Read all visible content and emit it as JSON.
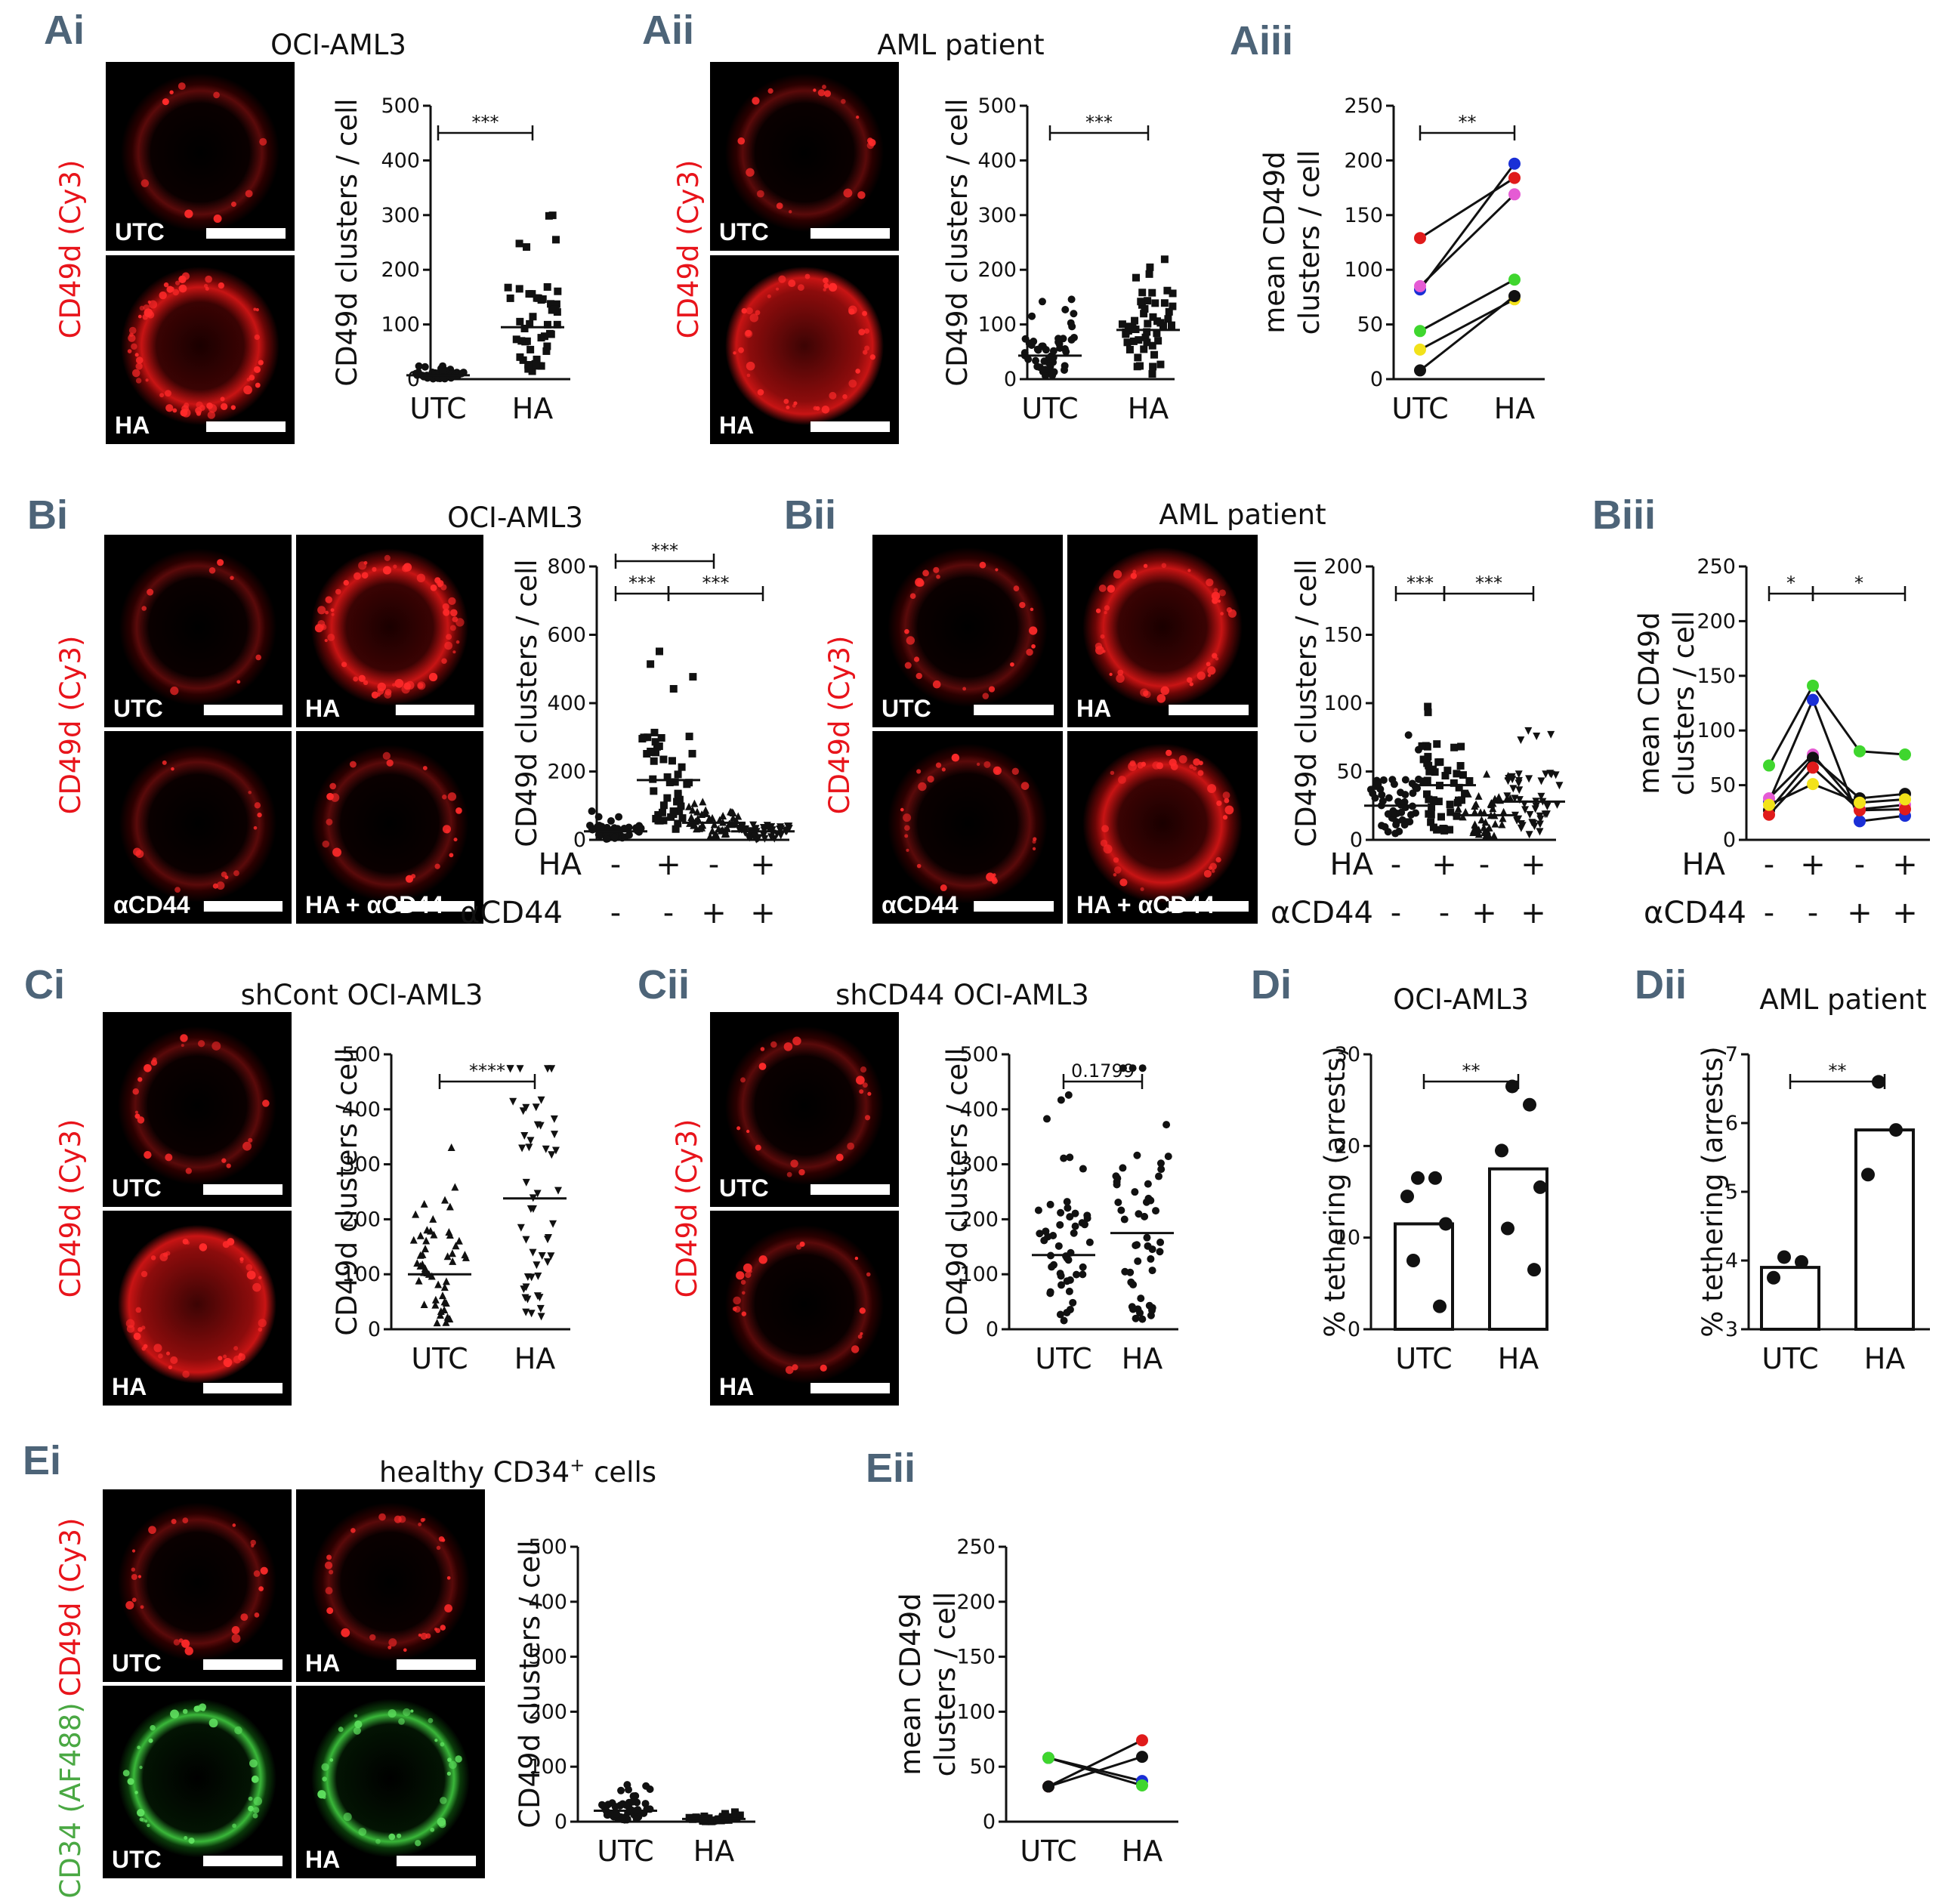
{
  "panel_labels": {
    "ai": "Ai",
    "aii": "Aii",
    "aiii": "Aiii",
    "bi": "Bi",
    "bii": "Bii",
    "biii": "Biii",
    "ci": "Ci",
    "cii": "Cii",
    "di": "Di",
    "dii": "Dii",
    "ei": "Ei",
    "eii": "Eii"
  },
  "titles": {
    "ai": "OCI-AML3",
    "aii": "AML patient",
    "bi": "OCI-AML3",
    "bii": "AML patient",
    "ci": "shCont OCI-AML3",
    "cii": "shCD44 OCI-AML3",
    "di": "OCI-AML3",
    "dii": "AML patient",
    "ei": "healthy CD34"
  },
  "title_superscripts": {
    "ei": "+"
  },
  "title_suffixes": {
    "ei": " cells"
  },
  "channel_labels": {
    "cd49d": "CD49d (Cy3)",
    "cd34": "CD34 (AF488)"
  },
  "channel_colors": {
    "cd49d": "#e8141b",
    "cd34": "#4aa843"
  },
  "micrograph_labels": {
    "utc": "UTC",
    "ha": "HA",
    "acd44": "αCD44",
    "ha_acd44": "HA + αCD44"
  },
  "condition_rows": {
    "ha_label": "HA",
    "acd44_label": "αCD44",
    "ha_values": [
      "-",
      "+",
      "-",
      "+"
    ],
    "acd44_values": [
      "-",
      "-",
      "+",
      "+"
    ]
  },
  "chart_data": [
    {
      "id": "Ai",
      "type": "scatter",
      "ylabel": "CD49d clusters / cell",
      "categories": [
        "UTC",
        "HA"
      ],
      "ylim": [
        0,
        500
      ],
      "yticks": [
        0,
        100,
        200,
        300,
        400,
        500
      ],
      "medians": [
        7,
        95
      ],
      "markers": [
        "circle",
        "square"
      ],
      "significance": [
        {
          "from": 0,
          "to": 1,
          "label": "***"
        }
      ]
    },
    {
      "id": "Aii",
      "type": "scatter",
      "ylabel": "CD49d clusters / cell",
      "categories": [
        "UTC",
        "HA"
      ],
      "ylim": [
        0,
        500
      ],
      "yticks": [
        0,
        100,
        200,
        300,
        400,
        500
      ],
      "medians": [
        43,
        90
      ],
      "markers": [
        "circle",
        "square"
      ],
      "significance": [
        {
          "from": 0,
          "to": 1,
          "label": "***"
        }
      ]
    },
    {
      "id": "Aiii",
      "type": "line",
      "ylabel": [
        "mean CD49d",
        "clusters / cell"
      ],
      "categories": [
        "UTC",
        "HA"
      ],
      "ylim": [
        0,
        250
      ],
      "yticks": [
        0,
        50,
        100,
        150,
        200,
        250
      ],
      "series": [
        {
          "color": "#1a2fd6",
          "values": [
            82,
            197
          ]
        },
        {
          "color": "#e01b1b",
          "values": [
            129,
            184
          ]
        },
        {
          "color": "#e55bd4",
          "values": [
            85,
            169
          ]
        },
        {
          "color": "#3fd62e",
          "values": [
            44,
            91
          ]
        },
        {
          "color": "#f2e21a",
          "values": [
            27,
            73
          ]
        },
        {
          "color": "#111111",
          "values": [
            8,
            76
          ]
        }
      ],
      "significance": [
        {
          "from": 0,
          "to": 1,
          "label": "**"
        }
      ]
    },
    {
      "id": "Bi",
      "type": "scatter",
      "ylabel": "CD49d clusters / cell",
      "categories": [
        "-/-",
        "+/-",
        "-/+",
        "+/+"
      ],
      "ylim": [
        0,
        800
      ],
      "yticks": [
        0,
        200,
        400,
        600,
        800
      ],
      "medians": [
        25,
        175,
        50,
        25
      ],
      "markers": [
        "circle",
        "square",
        "triangle",
        "triangle-down"
      ],
      "significance": [
        {
          "from": 0,
          "to": 1,
          "label": "***",
          "level": 0
        },
        {
          "from": 1,
          "to": 3,
          "label": "***",
          "level": 0
        },
        {
          "from": 0,
          "to": 2,
          "label": "***",
          "level": 1
        }
      ]
    },
    {
      "id": "Bii",
      "type": "scatter",
      "ylabel": "CD49d clusters / cell",
      "categories": [
        "-/-",
        "+/-",
        "-/+",
        "+/+"
      ],
      "ylim": [
        0,
        200
      ],
      "yticks": [
        0,
        50,
        100,
        150,
        200
      ],
      "medians": [
        25,
        40,
        18,
        28
      ],
      "markers": [
        "circle",
        "square",
        "triangle",
        "triangle-down"
      ],
      "significance": [
        {
          "from": 0,
          "to": 1,
          "label": "***",
          "level": 0
        },
        {
          "from": 1,
          "to": 3,
          "label": "***",
          "level": 0
        }
      ]
    },
    {
      "id": "Biii",
      "type": "line",
      "ylabel": [
        "mean CD49d",
        "clusters / cell"
      ],
      "categories": [
        "-/-",
        "+/-",
        "-/+",
        "+/+"
      ],
      "ylim": [
        0,
        250
      ],
      "yticks": [
        0,
        50,
        100,
        150,
        200,
        250
      ],
      "series": [
        {
          "color": "#3fd62e",
          "values": [
            68,
            141,
            81,
            78
          ]
        },
        {
          "color": "#1a2fd6",
          "values": [
            35,
            128,
            17,
            22
          ]
        },
        {
          "color": "#e55bd4",
          "values": [
            38,
            78,
            28,
            32
          ]
        },
        {
          "color": "#111111",
          "values": [
            27,
            75,
            38,
            42
          ]
        },
        {
          "color": "#e01b1b",
          "values": [
            23,
            66,
            27,
            28
          ]
        },
        {
          "color": "#f2e21a",
          "values": [
            32,
            51,
            34,
            37
          ]
        }
      ],
      "significance": [
        {
          "from": 0,
          "to": 1,
          "label": "*"
        },
        {
          "from": 1,
          "to": 3,
          "label": "*"
        }
      ]
    },
    {
      "id": "Ci",
      "type": "scatter",
      "ylabel": "CD49d clusters / cell",
      "categories": [
        "UTC",
        "HA"
      ],
      "ylim": [
        0,
        500
      ],
      "yticks": [
        0,
        100,
        200,
        300,
        400,
        500
      ],
      "medians": [
        100,
        238
      ],
      "markers": [
        "triangle",
        "triangle-down"
      ],
      "significance": [
        {
          "from": 0,
          "to": 1,
          "label": "****"
        }
      ]
    },
    {
      "id": "Cii",
      "type": "scatter",
      "ylabel": "CD49d clusters / cell",
      "categories": [
        "UTC",
        "HA"
      ],
      "ylim": [
        0,
        500
      ],
      "yticks": [
        0,
        100,
        200,
        300,
        400,
        500
      ],
      "medians": [
        135,
        175
      ],
      "markers": [
        "circle",
        "circle"
      ],
      "significance": [
        {
          "from": 0,
          "to": 1,
          "label": "0.1799"
        }
      ]
    },
    {
      "id": "Di",
      "type": "bar",
      "ylabel": "% tethering (arrests)",
      "categories": [
        "UTC",
        "HA"
      ],
      "ylim": [
        0,
        30
      ],
      "yticks": [
        0,
        10,
        20,
        30
      ],
      "values": [
        11.5,
        17.5
      ],
      "points": [
        [
          16.5,
          16.5,
          14.5,
          11.5,
          7.5,
          2.5
        ],
        [
          26.5,
          24.5,
          19.5,
          15.5,
          11,
          6.5
        ]
      ],
      "significance": [
        {
          "from": 0,
          "to": 1,
          "label": "**"
        }
      ]
    },
    {
      "id": "Dii",
      "type": "bar",
      "ylabel": "% tethering (arrests)",
      "categories": [
        "UTC",
        "HA"
      ],
      "ylim": [
        3,
        7
      ],
      "yticks": [
        3,
        4,
        5,
        6,
        7
      ],
      "values": [
        3.9,
        5.9
      ],
      "points": [
        [
          4.05,
          3.98,
          3.75
        ],
        [
          6.6,
          5.9,
          5.25
        ]
      ],
      "significance": [
        {
          "from": 0,
          "to": 1,
          "label": "**"
        }
      ]
    },
    {
      "id": "Ei",
      "type": "scatter",
      "ylabel": "CD49d clusters / cell",
      "categories": [
        "UTC",
        "HA"
      ],
      "ylim": [
        0,
        500
      ],
      "yticks": [
        0,
        100,
        200,
        300,
        400,
        500
      ],
      "medians": [
        20,
        5
      ],
      "markers": [
        "circle",
        "square"
      ],
      "significance": []
    },
    {
      "id": "Eii",
      "type": "line",
      "ylabel": [
        "mean CD49d",
        "clusters / cell"
      ],
      "categories": [
        "UTC",
        "HA"
      ],
      "ylim": [
        0,
        250
      ],
      "yticks": [
        0,
        50,
        100,
        150,
        200,
        250
      ],
      "series": [
        {
          "color": "#1a2fd6",
          "values": [
            58,
            37
          ]
        },
        {
          "color": "#e01b1b",
          "values": [
            32,
            74
          ]
        },
        {
          "color": "#3fd62e",
          "values": [
            58,
            33
          ]
        },
        {
          "color": "#111111",
          "values": [
            32,
            59
          ]
        }
      ],
      "significance": []
    }
  ]
}
